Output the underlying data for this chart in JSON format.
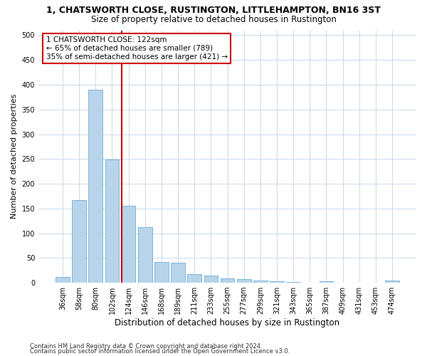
{
  "title": "1, CHATSWORTH CLOSE, RUSTINGTON, LITTLEHAMPTON, BN16 3ST",
  "subtitle": "Size of property relative to detached houses in Rustington",
  "xlabel": "Distribution of detached houses by size in Rustington",
  "ylabel": "Number of detached properties",
  "categories": [
    "36sqm",
    "58sqm",
    "80sqm",
    "102sqm",
    "124sqm",
    "146sqm",
    "168sqm",
    "189sqm",
    "211sqm",
    "233sqm",
    "255sqm",
    "277sqm",
    "299sqm",
    "321sqm",
    "343sqm",
    "365sqm",
    "387sqm",
    "409sqm",
    "431sqm",
    "453sqm",
    "474sqm"
  ],
  "values": [
    11,
    167,
    390,
    249,
    155,
    113,
    42,
    40,
    17,
    14,
    9,
    7,
    5,
    3,
    2,
    0,
    3,
    0,
    0,
    0,
    4
  ],
  "bar_color": "#b8d4ea",
  "bar_edge_color": "#6aaed6",
  "vline_color": "#cc0000",
  "vline_index": 4,
  "annotation_text": "1 CHATSWORTH CLOSE: 122sqm\n← 65% of detached houses are smaller (789)\n35% of semi-detached houses are larger (421) →",
  "ylim": [
    0,
    510
  ],
  "yticks": [
    0,
    50,
    100,
    150,
    200,
    250,
    300,
    350,
    400,
    450,
    500
  ],
  "footer1": "Contains HM Land Registry data © Crown copyright and database right 2024.",
  "footer2": "Contains public sector information licensed under the Open Government Licence v3.0.",
  "bg_color": "#ffffff",
  "grid_color": "#c8d8e8",
  "title_fontsize": 9,
  "subtitle_fontsize": 8.5,
  "xlabel_fontsize": 8.5,
  "ylabel_fontsize": 8,
  "tick_fontsize": 7,
  "annotation_fontsize": 7.5
}
